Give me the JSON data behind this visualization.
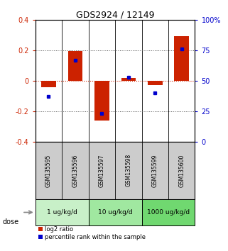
{
  "title": "GDS2924 / 12149",
  "samples": [
    "GSM135595",
    "GSM135596",
    "GSM135597",
    "GSM135598",
    "GSM135599",
    "GSM135600"
  ],
  "log2_ratio": [
    -0.04,
    0.195,
    -0.26,
    0.02,
    -0.03,
    0.295
  ],
  "percentile_rank": [
    37,
    67,
    23,
    53,
    40,
    76
  ],
  "dose_groups": [
    {
      "label": "1 ug/kg/d",
      "samples": [
        0,
        1
      ],
      "color": "#c8f0c8"
    },
    {
      "label": "10 ug/kg/d",
      "samples": [
        2,
        3
      ],
      "color": "#a0e8a0"
    },
    {
      "label": "1000 ug/kg/d",
      "samples": [
        4,
        5
      ],
      "color": "#70d870"
    }
  ],
  "ylim": [
    -0.4,
    0.4
  ],
  "yticks_left": [
    -0.4,
    -0.2,
    0.0,
    0.2,
    0.4
  ],
  "yticks_right": [
    0,
    25,
    50,
    75,
    100
  ],
  "bar_color": "#cc2200",
  "dot_color": "#0000cc",
  "hline_color": "#cc2200",
  "dotted_color": "#555555",
  "background_color": "#ffffff",
  "sample_bg": "#cccccc",
  "legend_log2": "log2 ratio",
  "legend_pct": "percentile rank within the sample",
  "dose_label": "dose",
  "bar_width": 0.55
}
